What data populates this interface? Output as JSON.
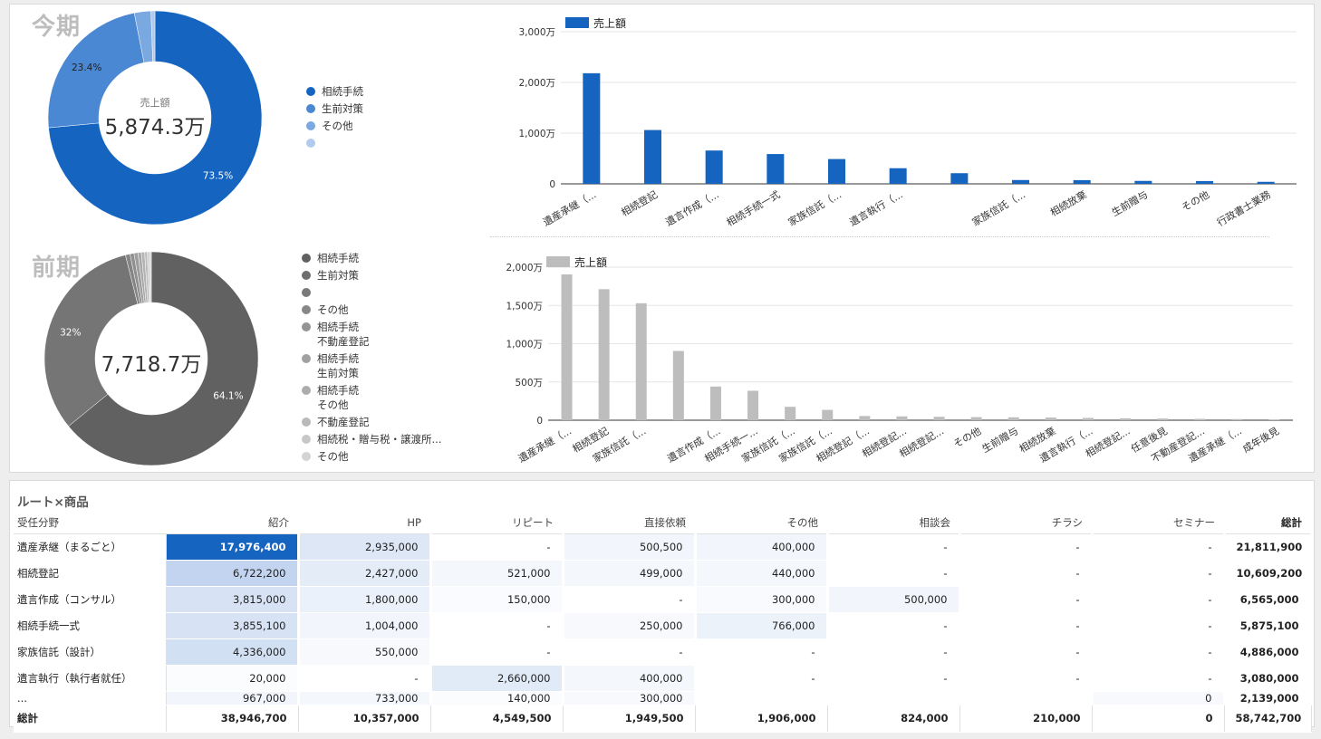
{
  "current": {
    "title": "今期",
    "donut": {
      "center_label": "売上額",
      "center_value": "5,874.3万",
      "slices": [
        {
          "name": "相続手続",
          "value": 73.5,
          "label": "73.5%",
          "color": "#1565c0"
        },
        {
          "name": "生前対策",
          "value": 23.4,
          "label": "23.4%",
          "color": "#4a88d4"
        },
        {
          "name": "その他",
          "value": 2.5,
          "label": "",
          "color": "#7aa8e0"
        },
        {
          "name": "",
          "value": 0.6,
          "label": "",
          "color": "#b0cbee"
        }
      ],
      "legend": [
        {
          "label": "相続手続",
          "color": "#1565c0"
        },
        {
          "label": "生前対策",
          "color": "#4a88d4"
        },
        {
          "label": "その他",
          "color": "#7aa8e0"
        },
        {
          "label": "",
          "color": "#b0cbee"
        }
      ]
    }
  },
  "previous": {
    "title": "前期",
    "donut": {
      "center_value": "7,718.7万",
      "slices": [
        {
          "name": "相続手続",
          "value": 64.1,
          "label": "64.1%",
          "color": "#616161"
        },
        {
          "name": "生前対策",
          "value": 32.0,
          "label": "32%",
          "color": "#757575"
        },
        {
          "name": "",
          "value": 0.7,
          "label": "",
          "color": "#858585"
        },
        {
          "name": "その他",
          "value": 0.6,
          "label": "",
          "color": "#8f8f8f"
        },
        {
          "name": "相続手続 不動産登記",
          "value": 0.6,
          "label": "",
          "color": "#9e9e9e"
        },
        {
          "name": "相続手続 生前対策",
          "value": 0.5,
          "label": "",
          "color": "#a8a8a8"
        },
        {
          "name": "相続手続 その他",
          "value": 0.5,
          "label": "",
          "color": "#b3b3b3"
        },
        {
          "name": "不動産登記",
          "value": 0.4,
          "label": "",
          "color": "#bdbdbd"
        },
        {
          "name": "相続税・贈与税・譲渡所...",
          "value": 0.3,
          "label": "",
          "color": "#c9c9c9"
        },
        {
          "name": "その他",
          "value": 0.3,
          "label": "",
          "color": "#d6d6d6"
        }
      ],
      "legend": [
        {
          "label": "相続手続",
          "color": "#616161"
        },
        {
          "label": "生前対策",
          "color": "#6e6e6e"
        },
        {
          "label": "",
          "color": "#7a7a7a"
        },
        {
          "label": "その他",
          "color": "#878787"
        },
        {
          "label": "相続手続\n不動産登記",
          "color": "#949494"
        },
        {
          "label": "相続手続\n生前対策",
          "color": "#a1a1a1"
        },
        {
          "label": "相続手続\nその他",
          "color": "#adadad"
        },
        {
          "label": "不動産登記",
          "color": "#bababa"
        },
        {
          "label": "相続税・贈与税・譲渡所...",
          "color": "#c7c7c7"
        },
        {
          "label": "その他",
          "color": "#d4d4d4"
        }
      ]
    }
  },
  "chart_data": [
    {
      "type": "bar",
      "legend": "売上額",
      "color": "#1565c0",
      "ylim": [
        0,
        3000
      ],
      "yticks": [
        0,
        1000,
        2000,
        3000
      ],
      "ytick_labels": [
        "0",
        "1,000万",
        "2,000万",
        "3,000万"
      ],
      "categories": [
        "遺産承継（...",
        "相続登記",
        "遺言作成（...",
        "相続手続一式",
        "家族信託（...",
        "遺言執行（...",
        "",
        "家族信託（...",
        "相続放棄",
        "生前贈与",
        "その他",
        "行政書士業務"
      ],
      "series": [
        {
          "name": "売上額",
          "values": [
            2181,
            1061,
            657,
            588,
            489,
            308,
            210,
            75,
            73,
            58,
            55,
            40
          ]
        }
      ]
    },
    {
      "type": "bar",
      "legend": "売上額",
      "color": "#bdbdbd",
      "ylim": [
        0,
        2000
      ],
      "yticks": [
        0,
        500,
        1000,
        1500,
        2000
      ],
      "ytick_labels": [
        "0",
        "500万",
        "1,000万",
        "1,500万",
        "2,000万"
      ],
      "categories": [
        "遺産承継（...",
        "相続登記",
        "家族信託（...",
        "",
        "遺言作成（...",
        "相続手続一...",
        "家族信託（...",
        "家族信託（...",
        "相続登記（...",
        "相続登記...",
        "相続登記...",
        "その他",
        "生前贈与",
        "相続放棄",
        "遺言執行（...",
        "相続登記...",
        "任意後見",
        "不動産登記...",
        "遺産承継（...",
        "成年後見"
      ],
      "series": [
        {
          "name": "売上額",
          "values": [
            1905,
            1712,
            1528,
            905,
            440,
            385,
            175,
            135,
            55,
            50,
            45,
            40,
            38,
            35,
            30,
            25,
            22,
            18,
            15,
            10
          ]
        }
      ]
    }
  ],
  "table": {
    "title": "ルート×商品",
    "columns": [
      "受任分野",
      "紹介",
      "HP",
      "リピート",
      "直接依頼",
      "その他",
      "相談会",
      "チラシ",
      "セミナー",
      "総計"
    ],
    "rows": [
      {
        "name": "遺産承継（まるごと）",
        "values": [
          "17,976,400",
          "2,935,000",
          "-",
          "500,500",
          "400,000",
          "-",
          "-",
          "-"
        ],
        "total": "21,811,900"
      },
      {
        "name": "相続登記",
        "values": [
          "6,722,200",
          "2,427,000",
          "521,000",
          "499,000",
          "440,000",
          "-",
          "-",
          "-"
        ],
        "total": "10,609,200"
      },
      {
        "name": "遺言作成（コンサル）",
        "values": [
          "3,815,000",
          "1,800,000",
          "150,000",
          "-",
          "300,000",
          "500,000",
          "-",
          "-"
        ],
        "total": "6,565,000"
      },
      {
        "name": "相続手続一式",
        "values": [
          "3,855,100",
          "1,004,000",
          "-",
          "250,000",
          "766,000",
          "-",
          "-",
          "-"
        ],
        "total": "5,875,100"
      },
      {
        "name": "家族信託（設計）",
        "values": [
          "4,336,000",
          "550,000",
          "-",
          "-",
          "-",
          "-",
          "-",
          "-"
        ],
        "total": "4,886,000"
      },
      {
        "name": "遺言執行（執行者就任）",
        "values": [
          "20,000",
          "-",
          "2,660,000",
          "400,000",
          "-",
          "-",
          "-",
          "-"
        ],
        "total": "3,080,000"
      },
      {
        "name": "...",
        "values": [
          "967,000",
          "733,000",
          "140,000",
          "300,000",
          "",
          "",
          "",
          "0"
        ],
        "total": "2,139,000"
      }
    ],
    "heat": [
      [
        1.0,
        0.25,
        0,
        0.1,
        0.1,
        0,
        0,
        0
      ],
      [
        0.45,
        0.2,
        0.08,
        0.08,
        0.08,
        0,
        0,
        0
      ],
      [
        0.3,
        0.15,
        0.04,
        0,
        0.05,
        0.1,
        0,
        0
      ],
      [
        0.3,
        0.1,
        0,
        0.06,
        0.14,
        0,
        0,
        0
      ],
      [
        0.33,
        0.06,
        0,
        0,
        0,
        0,
        0,
        0
      ],
      [
        0.03,
        0,
        0.22,
        0.08,
        0,
        0,
        0,
        0
      ],
      [
        0.1,
        0.08,
        0.03,
        0.06,
        0,
        0,
        0,
        0.06
      ]
    ],
    "grand_total": {
      "name": "総計",
      "values": [
        "38,946,700",
        "10,357,000",
        "4,549,500",
        "1,949,500",
        "1,906,000",
        "824,000",
        "210,000",
        "0"
      ],
      "total": "58,742,700"
    }
  }
}
